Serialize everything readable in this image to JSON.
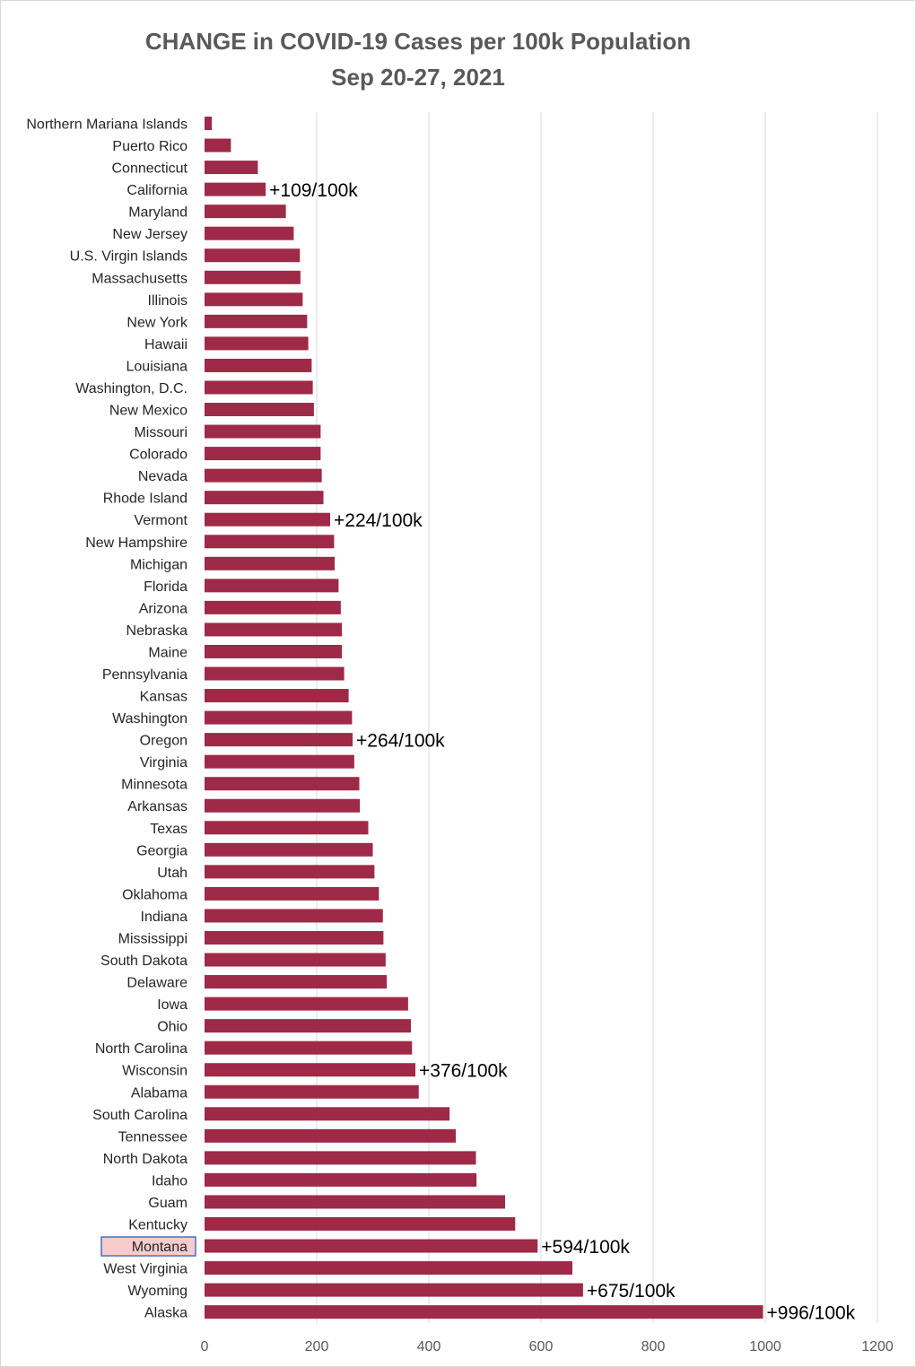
{
  "chart_data": {
    "type": "bar",
    "orientation": "horizontal",
    "title": "CHANGE in COVID-19 Cases per 100k Population",
    "subtitle": "Sep 20-27, 2021",
    "xlabel": "",
    "ylabel": "",
    "xlim": [
      0,
      1200
    ],
    "xticks": [
      0,
      200,
      400,
      600,
      800,
      1000,
      1200
    ],
    "grid": true,
    "legend": "none",
    "bar_color": "#9E2A47",
    "highlight_category": "Montana",
    "highlight_fill": "#F8CBCB",
    "highlight_border": "#4472C4",
    "categories": [
      "Northern Mariana Islands",
      "Puerto Rico",
      "Connecticut",
      "California",
      "Maryland",
      "New Jersey",
      "U.S. Virgin Islands",
      "Massachusetts",
      "Illinois",
      "New York",
      "Hawaii",
      "Louisiana",
      "Washington, D.C.",
      "New Mexico",
      "Missouri",
      "Colorado",
      "Nevada",
      "Rhode Island",
      "Vermont",
      "New Hampshire",
      "Michigan",
      "Florida",
      "Arizona",
      "Nebraska",
      "Maine",
      "Pennsylvania",
      "Kansas",
      "Washington",
      "Oregon",
      "Virginia",
      "Minnesota",
      "Arkansas",
      "Texas",
      "Georgia",
      "Utah",
      "Oklahoma",
      "Indiana",
      "Mississippi",
      "South Dakota",
      "Delaware",
      "Iowa",
      "Ohio",
      "North Carolina",
      "Wisconsin",
      "Alabama",
      "South Carolina",
      "Tennessee",
      "North Dakota",
      "Idaho",
      "Guam",
      "Kentucky",
      "Montana",
      "West Virginia",
      "Wyoming",
      "Alaska"
    ],
    "values": [
      13,
      47,
      95,
      109,
      145,
      159,
      170,
      171,
      175,
      183,
      185,
      191,
      193,
      195,
      207,
      207,
      209,
      212,
      224,
      231,
      232,
      239,
      243,
      245,
      245,
      249,
      257,
      263,
      264,
      267,
      276,
      277,
      292,
      300,
      303,
      311,
      318,
      319,
      323,
      325,
      363,
      368,
      370,
      376,
      382,
      437,
      448,
      484,
      485,
      536,
      554,
      594,
      656,
      675,
      996
    ],
    "annotations": [
      {
        "category": "California",
        "text": "+109/100k"
      },
      {
        "category": "Vermont",
        "text": "+224/100k"
      },
      {
        "category": "Oregon",
        "text": "+264/100k"
      },
      {
        "category": "Wisconsin",
        "text": "+376/100k"
      },
      {
        "category": "Montana",
        "text": "+594/100k"
      },
      {
        "category": "Wyoming",
        "text": "+675/100k"
      },
      {
        "category": "Alaska",
        "text": "+996/100k"
      }
    ]
  }
}
